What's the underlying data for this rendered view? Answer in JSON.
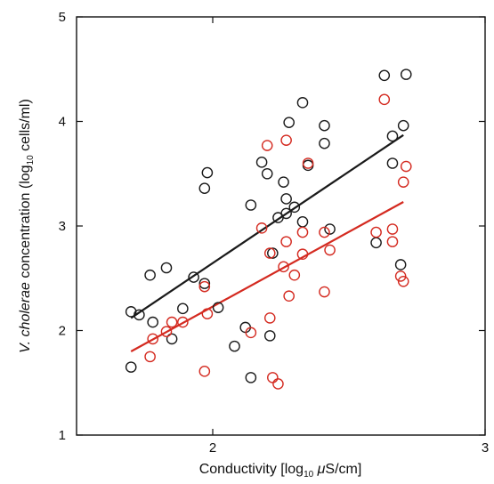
{
  "chart_data": {
    "type": "scatter",
    "xlim": [
      1.5,
      3.0
    ],
    "ylim": [
      1,
      5
    ],
    "xticks": [
      2,
      3
    ],
    "xtick_labels": [
      "2",
      "3"
    ],
    "yticks": [
      1,
      2,
      3,
      4,
      5
    ],
    "ytick_labels": [
      "1",
      "2",
      "3",
      "4",
      "5"
    ],
    "xlabel": {
      "pre": "Conductivity [log",
      "sub": "10",
      "mid": " ",
      "italic": "μ",
      "post": "S/cm]"
    },
    "ylabel": {
      "italic": "V. cholerae",
      "pre": " concentration (log",
      "sub": "10",
      "post": " cells/ml)"
    },
    "grid": false,
    "series": [
      {
        "color": "#1a1a1a",
        "fit": {
          "x": [
            1.7,
            2.7
          ],
          "y": [
            2.12,
            3.87
          ]
        },
        "points": [
          {
            "x": 1.7,
            "y": 1.65
          },
          {
            "x": 1.7,
            "y": 2.18
          },
          {
            "x": 1.73,
            "y": 2.15
          },
          {
            "x": 1.77,
            "y": 2.53
          },
          {
            "x": 1.78,
            "y": 2.08
          },
          {
            "x": 1.83,
            "y": 2.6
          },
          {
            "x": 1.85,
            "y": 1.92
          },
          {
            "x": 1.89,
            "y": 2.21
          },
          {
            "x": 1.93,
            "y": 2.51
          },
          {
            "x": 1.97,
            "y": 2.45
          },
          {
            "x": 1.97,
            "y": 3.36
          },
          {
            "x": 1.98,
            "y": 3.51
          },
          {
            "x": 2.02,
            "y": 2.22
          },
          {
            "x": 2.08,
            "y": 1.85
          },
          {
            "x": 2.12,
            "y": 2.03
          },
          {
            "x": 2.14,
            "y": 3.2
          },
          {
            "x": 2.14,
            "y": 1.55
          },
          {
            "x": 2.18,
            "y": 3.61
          },
          {
            "x": 2.2,
            "y": 3.5
          },
          {
            "x": 2.21,
            "y": 1.95
          },
          {
            "x": 2.22,
            "y": 2.74
          },
          {
            "x": 2.24,
            "y": 3.08
          },
          {
            "x": 2.26,
            "y": 3.42
          },
          {
            "x": 2.27,
            "y": 3.12
          },
          {
            "x": 2.27,
            "y": 3.26
          },
          {
            "x": 2.28,
            "y": 3.99
          },
          {
            "x": 2.3,
            "y": 3.18
          },
          {
            "x": 2.33,
            "y": 4.18
          },
          {
            "x": 2.33,
            "y": 3.04
          },
          {
            "x": 2.35,
            "y": 3.58
          },
          {
            "x": 2.41,
            "y": 3.96
          },
          {
            "x": 2.41,
            "y": 3.79
          },
          {
            "x": 2.43,
            "y": 2.97
          },
          {
            "x": 2.6,
            "y": 2.84
          },
          {
            "x": 2.63,
            "y": 4.44
          },
          {
            "x": 2.66,
            "y": 3.86
          },
          {
            "x": 2.66,
            "y": 3.6
          },
          {
            "x": 2.69,
            "y": 2.63
          },
          {
            "x": 2.7,
            "y": 3.96
          },
          {
            "x": 2.71,
            "y": 4.45
          }
        ]
      },
      {
        "color": "#d42a20",
        "fit": {
          "x": [
            1.7,
            2.7
          ],
          "y": [
            1.8,
            3.23
          ]
        },
        "points": [
          {
            "x": 1.77,
            "y": 1.75
          },
          {
            "x": 1.78,
            "y": 1.92
          },
          {
            "x": 1.83,
            "y": 1.99
          },
          {
            "x": 1.85,
            "y": 2.08
          },
          {
            "x": 1.89,
            "y": 2.08
          },
          {
            "x": 1.97,
            "y": 2.42
          },
          {
            "x": 1.97,
            "y": 1.61
          },
          {
            "x": 1.98,
            "y": 2.16
          },
          {
            "x": 2.14,
            "y": 1.98
          },
          {
            "x": 2.18,
            "y": 2.98
          },
          {
            "x": 2.2,
            "y": 3.77
          },
          {
            "x": 2.21,
            "y": 2.74
          },
          {
            "x": 2.21,
            "y": 2.12
          },
          {
            "x": 2.22,
            "y": 1.55
          },
          {
            "x": 2.24,
            "y": 1.49
          },
          {
            "x": 2.26,
            "y": 2.61
          },
          {
            "x": 2.27,
            "y": 2.85
          },
          {
            "x": 2.27,
            "y": 3.82
          },
          {
            "x": 2.28,
            "y": 2.33
          },
          {
            "x": 2.3,
            "y": 2.53
          },
          {
            "x": 2.33,
            "y": 2.94
          },
          {
            "x": 2.33,
            "y": 2.73
          },
          {
            "x": 2.35,
            "y": 3.6
          },
          {
            "x": 2.41,
            "y": 2.94
          },
          {
            "x": 2.41,
            "y": 2.37
          },
          {
            "x": 2.43,
            "y": 2.77
          },
          {
            "x": 2.6,
            "y": 2.94
          },
          {
            "x": 2.63,
            "y": 4.21
          },
          {
            "x": 2.66,
            "y": 2.97
          },
          {
            "x": 2.66,
            "y": 2.85
          },
          {
            "x": 2.69,
            "y": 2.52
          },
          {
            "x": 2.7,
            "y": 2.47
          },
          {
            "x": 2.7,
            "y": 3.42
          },
          {
            "x": 2.71,
            "y": 3.57
          }
        ]
      }
    ]
  }
}
